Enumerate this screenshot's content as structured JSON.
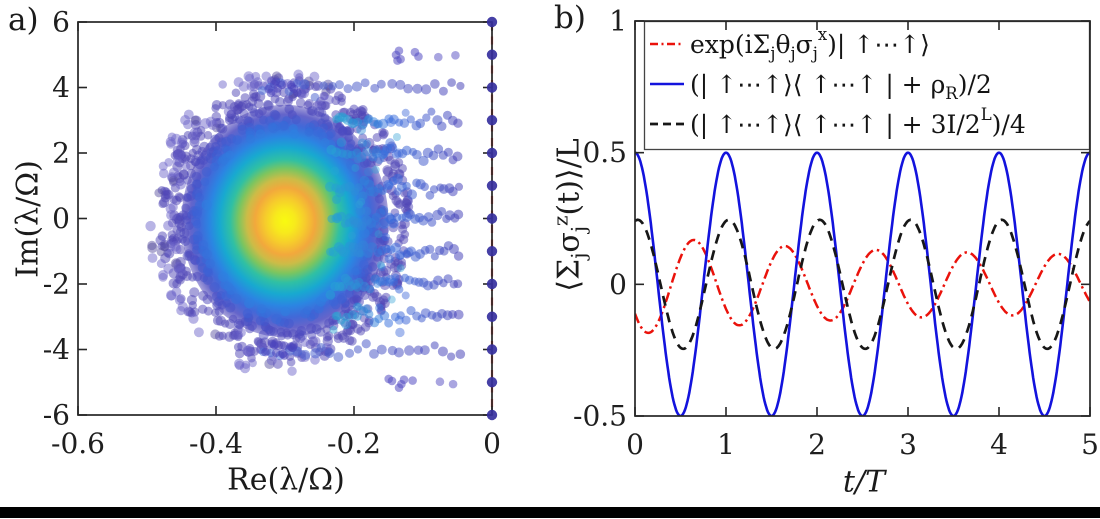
{
  "figure": {
    "panel_a_label": "a)",
    "panel_b_label": "b)",
    "background": "#ffffff",
    "bottom_bar_color": "#000000",
    "axis_color": "#262626",
    "tick_label_color": "#1f1f1f"
  },
  "chart_data": [
    {
      "panel": "a",
      "type": "scatter",
      "xlabel": "Re(λ/Ω)",
      "ylabel": "Im(λ/Ω)",
      "xlim": [
        -0.6,
        0
      ],
      "ylim": [
        -6,
        6
      ],
      "xticks": [
        {
          "v": -0.6,
          "label": "-0.6"
        },
        {
          "v": -0.4,
          "label": "-0.4"
        },
        {
          "v": -0.2,
          "label": "-0.2"
        },
        {
          "v": 0,
          "label": "0"
        }
      ],
      "yticks": [
        {
          "v": 6,
          "label": "6"
        },
        {
          "v": 4,
          "label": "4"
        },
        {
          "v": 2,
          "label": "2"
        },
        {
          "v": 0,
          "label": "0"
        },
        {
          "v": -2,
          "label": "-2"
        },
        {
          "v": -4,
          "label": "-4"
        },
        {
          "v": -6,
          "label": "-6"
        }
      ],
      "spectrum": {
        "description": "density-colored eigenvalue cloud in complex plane",
        "cloud": {
          "center": [
            -0.3,
            -0.08
          ],
          "rx": 0.15,
          "ry": 3.55,
          "colormap": [
            [
              0.0,
              "#f8fa10",
              1
            ],
            [
              0.1,
              "#f7ea1c",
              1
            ],
            [
              0.19,
              "#f6cd2b",
              1
            ],
            [
              0.29,
              "#f2a83c",
              1
            ],
            [
              0.37,
              "#ccbc47",
              1
            ],
            [
              0.45,
              "#7cc55f",
              1
            ],
            [
              0.53,
              "#30c0a3",
              1
            ],
            [
              0.63,
              "#18a9d0",
              1
            ],
            [
              0.73,
              "#2b85e2",
              1
            ],
            [
              0.83,
              "#3a62d6",
              0.96
            ],
            [
              0.92,
              "#4a4ac1",
              0.85
            ],
            [
              1.0,
              "#4f46b6",
              0.5
            ]
          ]
        },
        "shell": {
          "count": 680,
          "d_min": 0.76,
          "d_max": 1.22,
          "alpha": 0.5
        },
        "halo": {
          "count": 175,
          "color": "#6b62c9",
          "dark_color": "#57509f",
          "alpha": 0.48
        },
        "resonance_rows": {
          "im": [
            -3,
            -2,
            -1,
            0,
            1,
            2,
            3
          ],
          "re_start": -0.225,
          "re_tip": -0.043,
          "color_tip": "#443eb6",
          "color_mid": "#3a6ede",
          "color_near": "#25a6d2"
        },
        "outer_rows": {
          "im": [
            4,
            -4
          ],
          "re_start": -0.335,
          "re_tip": -0.037,
          "clump_re": [
            -0.33,
            -0.275
          ],
          "clump_color": "#4942bb"
        },
        "sparse_rows": {
          "im": [
            5,
            -5
          ],
          "clump_re": [
            -0.158,
            -0.105
          ],
          "single_re": [
            -0.076,
            -0.052
          ],
          "color": "#544cc2"
        },
        "zero_modes": {
          "re": 0,
          "im": [
            -6,
            -5,
            -4,
            -3,
            -2,
            -1,
            0,
            1,
            2,
            3,
            4,
            5,
            6
          ],
          "color": "#36309e"
        },
        "zero_line": {
          "re": 0,
          "color": "#ef4b47",
          "dash": [
            8,
            6.5
          ],
          "width": 2.2
        }
      }
    },
    {
      "panel": "b",
      "type": "line",
      "xlabel": "t/T",
      "ylabel": "⟨Σ_jσ_j^z(t)⟩/L",
      "xlim": [
        0,
        5
      ],
      "ylim": [
        -0.5,
        1
      ],
      "xticks": [
        {
          "v": 0,
          "label": "0"
        },
        {
          "v": 1,
          "label": "1"
        },
        {
          "v": 2,
          "label": "2"
        },
        {
          "v": 3,
          "label": "3"
        },
        {
          "v": 4,
          "label": "4"
        },
        {
          "v": 5,
          "label": "5"
        }
      ],
      "yticks": [
        {
          "v": 1,
          "label": "1"
        },
        {
          "v": 0.5,
          "label": "0.5"
        },
        {
          "v": 0,
          "label": "0"
        },
        {
          "v": -0.5,
          "label": "-0.5"
        }
      ],
      "legend": {
        "position": "north-inside",
        "border_color": "#444444",
        "background": "#ffffff"
      },
      "series": [
        {
          "label": "exp(iΣ_jθ_jσ_j^x)| ↑⋯↑⟩",
          "color": "#ea120b",
          "style": "dashdot",
          "width": 2.5,
          "model": {
            "form": "y = sign·(amp_base+amp_decay·exp(-decay_rate·t))·cos(2π(t-phase)/period)",
            "sign": -1,
            "amp_base": 0.105,
            "amp_decay": 0.085,
            "decay_rate": 0.45,
            "phase": 0.15,
            "period": 1
          }
        },
        {
          "label": "(| ↑⋯↑⟩⟨ ↑⋯↑ | + ρ_R)/2",
          "color": "#1313dd",
          "style": "solid",
          "width": 2.6,
          "model": {
            "form": "y = 0.5·cos(2πt/T)",
            "sign": 1,
            "amp_base": 0.5,
            "amp_decay": 0,
            "decay_rate": 0,
            "phase": 0,
            "period": 1
          }
        },
        {
          "label": "(| ↑⋯↑⟩⟨ ↑⋯↑ | + 3I/2^L)/4",
          "color": "#171717",
          "style": "dashed",
          "width": 2.7,
          "model": {
            "form": "y = 0.245·cos(2π(t-0.03)/T)",
            "sign": 1,
            "amp_base": 0.245,
            "amp_decay": 0,
            "decay_rate": 0,
            "phase": 0.03,
            "period": 1
          }
        }
      ]
    }
  ]
}
